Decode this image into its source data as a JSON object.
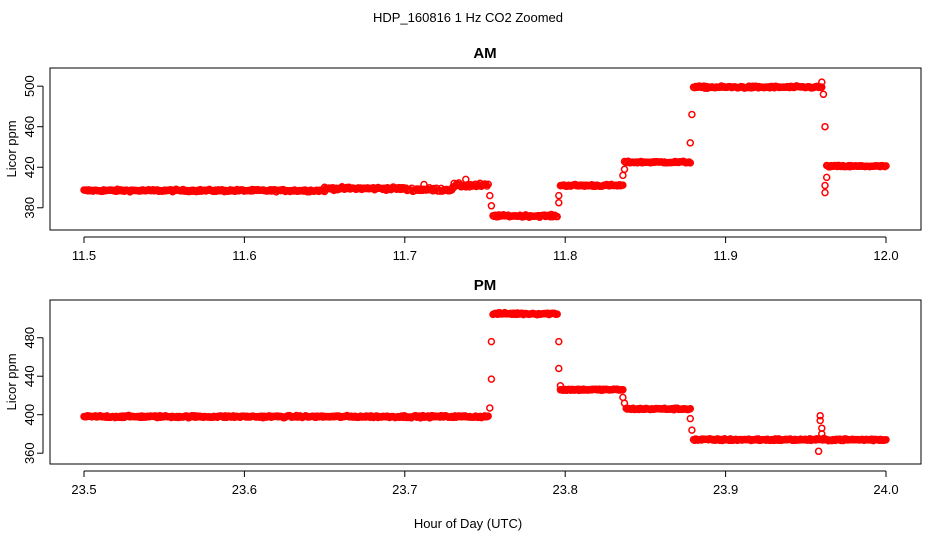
{
  "chart_data": {
    "title": "HDP_160816  1 Hz CO2 Zoomed",
    "xlabel": "Hour of Day (UTC)",
    "point_color": "#ff0000",
    "marker": "open-circle",
    "panels": [
      {
        "type": "scatter",
        "title": "AM",
        "ylabel": "Licor ppm",
        "xlim": [
          11.5,
          12.0
        ],
        "ylim": [
          364,
          512
        ],
        "x_ticks": [
          "11.5",
          "11.6",
          "11.7",
          "11.8",
          "11.9",
          "12.0"
        ],
        "y_ticks": [
          "380",
          "420",
          "460",
          "500"
        ],
        "segments": [
          {
            "x": [
              11.5,
              11.65
            ],
            "y": 397,
            "noise": 1.5
          },
          {
            "x": [
              11.65,
              11.7
            ],
            "y": 399,
            "noise": 2.0
          },
          {
            "x": [
              11.7,
              11.73
            ],
            "y": 398,
            "noise": 2.5
          },
          {
            "x": [
              11.73,
              11.752
            ],
            "y": 402,
            "noise": 3.0
          },
          {
            "x": [
              11.755,
              11.795
            ],
            "y": 372,
            "noise": 1.5
          },
          {
            "x": [
              11.797,
              11.836
            ],
            "y": 402,
            "noise": 1.5
          },
          {
            "x": [
              11.837,
              11.878
            ],
            "y": 425,
            "noise": 1.2
          },
          {
            "x": [
              11.88,
              11.96
            ],
            "y": 499,
            "noise": 1.5
          },
          {
            "x": [
              11.963,
              12.0
            ],
            "y": 421,
            "noise": 1.2
          }
        ],
        "transitions": [
          {
            "x": 11.753,
            "y": 392
          },
          {
            "x": 11.754,
            "y": 382
          },
          {
            "x": 11.796,
            "y": 392
          },
          {
            "x": 11.796,
            "y": 385
          },
          {
            "x": 11.836,
            "y": 412
          },
          {
            "x": 11.837,
            "y": 418
          },
          {
            "x": 11.878,
            "y": 444
          },
          {
            "x": 11.879,
            "y": 472
          },
          {
            "x": 11.961,
            "y": 492
          },
          {
            "x": 11.962,
            "y": 460
          },
          {
            "x": 11.962,
            "y": 402
          },
          {
            "x": 11.962,
            "y": 395
          },
          {
            "x": 11.963,
            "y": 410
          },
          {
            "x": 11.96,
            "y": 504
          },
          {
            "x": 11.738,
            "y": 408
          },
          {
            "x": 11.712,
            "y": 403
          }
        ]
      },
      {
        "type": "scatter",
        "title": "PM",
        "ylabel": "Licor ppm",
        "xlim": [
          23.5,
          24.0
        ],
        "ylim": [
          355,
          513
        ],
        "x_ticks": [
          "23.5",
          "23.6",
          "23.7",
          "23.8",
          "23.9",
          "24.0"
        ],
        "y_ticks": [
          "360",
          "400",
          "440",
          "480"
        ],
        "segments": [
          {
            "x": [
              23.5,
              23.752
            ],
            "y": 398,
            "noise": 1.5
          },
          {
            "x": [
              23.755,
              23.795
            ],
            "y": 505,
            "noise": 1.5
          },
          {
            "x": [
              23.797,
              23.836
            ],
            "y": 426,
            "noise": 1.2
          },
          {
            "x": [
              23.838,
              23.878
            ],
            "y": 406,
            "noise": 1.2
          },
          {
            "x": [
              23.88,
              24.0
            ],
            "y": 374,
            "noise": 1.5
          }
        ],
        "transitions": [
          {
            "x": 23.753,
            "y": 407
          },
          {
            "x": 23.754,
            "y": 437
          },
          {
            "x": 23.754,
            "y": 476
          },
          {
            "x": 23.796,
            "y": 476
          },
          {
            "x": 23.796,
            "y": 448
          },
          {
            "x": 23.797,
            "y": 430
          },
          {
            "x": 23.836,
            "y": 418
          },
          {
            "x": 23.837,
            "y": 412
          },
          {
            "x": 23.878,
            "y": 396
          },
          {
            "x": 23.879,
            "y": 384
          },
          {
            "x": 23.959,
            "y": 399
          },
          {
            "x": 23.959,
            "y": 394
          },
          {
            "x": 23.96,
            "y": 386
          },
          {
            "x": 23.958,
            "y": 362
          },
          {
            "x": 23.96,
            "y": 380
          }
        ]
      }
    ]
  }
}
